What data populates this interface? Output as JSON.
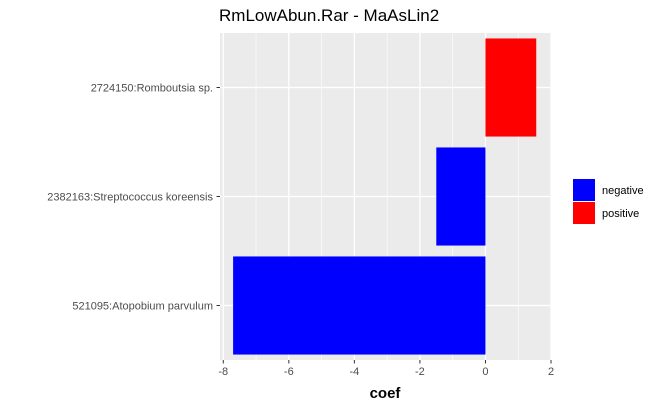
{
  "chart_data": {
    "type": "bar",
    "orientation": "horizontal",
    "title": "RmLowAbun.Rar - MaAsLin2",
    "xlabel": "coef",
    "ylabel": "",
    "categories": [
      "521095:Atopobium parvulum",
      "2382163:Streptococcus koreensis",
      "2724150:Romboutsia sp."
    ],
    "values": [
      -7.7,
      -1.5,
      1.55
    ],
    "groups": [
      "negative",
      "negative",
      "positive"
    ],
    "xlim": [
      -8.1,
      2.0
    ],
    "xticks": [
      -8,
      -6,
      -4,
      -2,
      0,
      2
    ],
    "xtick_labels": [
      "-8",
      "-6",
      "-4",
      "-2",
      "0",
      "2"
    ],
    "grid": true,
    "panel_background": "#ebebeb",
    "legend": {
      "placement": "right",
      "entries": [
        {
          "label": "negative",
          "color": "#0000ff"
        },
        {
          "label": "positive",
          "color": "#ff0000"
        }
      ]
    }
  }
}
